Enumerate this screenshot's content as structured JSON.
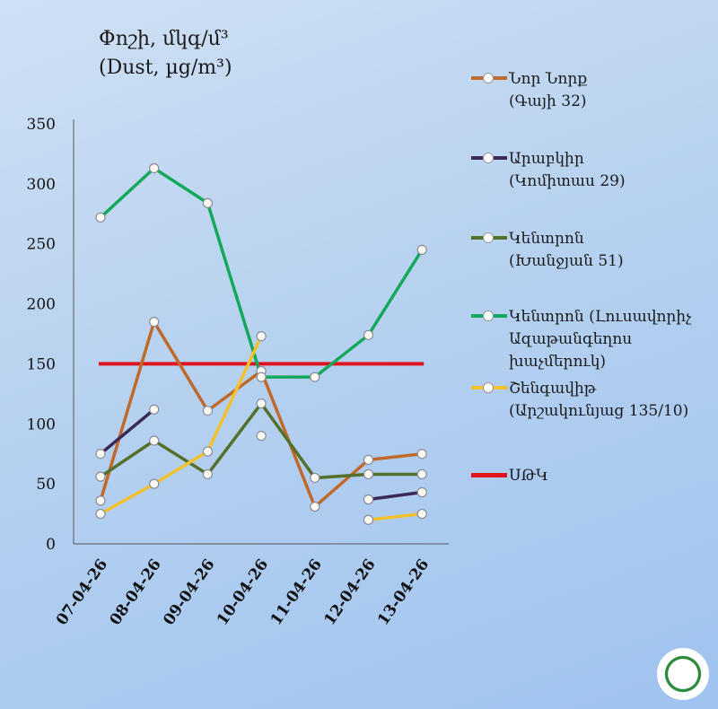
{
  "chart_data": {
    "type": "line",
    "title_line1": "Փոշի, մկգ/մ³",
    "title_line2": "(Dust, µg/m³)",
    "categories": [
      "07-04-26",
      "08-04-26",
      "09-04-26",
      "10-04-26",
      "11-04-26",
      "12-04-26",
      "13-04-26"
    ],
    "ylim": [
      0,
      350
    ],
    "yticks": [
      0,
      50,
      100,
      150,
      200,
      250,
      300,
      350
    ],
    "grid": false,
    "legend_position": "right",
    "series": [
      {
        "name": "Նոր Նորք (Գայի 32)",
        "lines": [
          "Նոր Նորք",
          "(Գայի 32)"
        ],
        "color": "#c0692b",
        "values": [
          36,
          185,
          111,
          144,
          31,
          70,
          75
        ]
      },
      {
        "name": "Արաբկիր (Կոմիտաս 29)",
        "lines": [
          "Արաբկիր",
          "(Կոմիտաս 29)"
        ],
        "color": "#3a2a55",
        "values": [
          75,
          112,
          null,
          90,
          null,
          37,
          43
        ]
      },
      {
        "name": "Կենտրոն (Խանջյան 51)",
        "lines": [
          "Կենտրոն",
          "(Խանջյան 51)"
        ],
        "color": "#55702a",
        "values": [
          56,
          86,
          58,
          117,
          55,
          58,
          58
        ]
      },
      {
        "name": "Կենտրոն (Լուսավորիչ Ազաթանգեղոս խաչմերուկ)",
        "lines": [
          "Կենտրոն (Լուսավորիչ",
          "Ազաթանգեղոս",
          "խաչմերուկ)"
        ],
        "color": "#14a85a",
        "values": [
          272,
          313,
          284,
          139,
          139,
          174,
          245
        ]
      },
      {
        "name": "Շենգավիթ (Արշակունյաց 135/10)",
        "lines": [
          "Շենգավիթ",
          "(Արշակունյաց 135/10)"
        ],
        "color": "#f2c12e",
        "values": [
          25,
          50,
          77,
          173,
          null,
          20,
          25
        ]
      }
    ],
    "threshold": {
      "name": "ՍԹԿ",
      "lines": [
        "ՍԹԿ"
      ],
      "value": 150,
      "color": "#e0141e"
    }
  }
}
